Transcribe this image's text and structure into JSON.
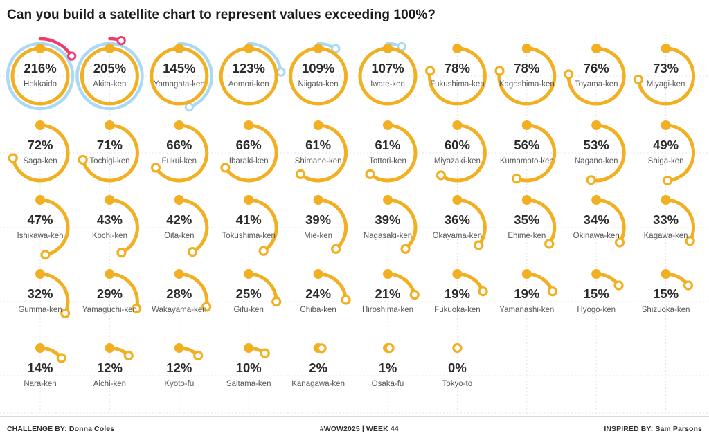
{
  "title": "Can you build a satellite chart to represent values exceeding 100%?",
  "footer": {
    "left": "CHALLENGE BY: Donna Coles",
    "center": "#WOW2025 | WEEK 44",
    "right": "INSPIRED BY: Sam Parsons"
  },
  "colors": {
    "ring_0_100": "#F1AF21",
    "ring_100_200": "#A9D9F3",
    "ring_200_300": "#EF3C6F",
    "value_text": "#2b2b2b",
    "label_text": "#575757",
    "gridline": "#e4e4e4",
    "title_text": "#1c1c1c",
    "footer_text": "#303030"
  },
  "chart_data": {
    "type": "satellite-gauge",
    "title": "Can you build a satellite chart to represent values exceeding 100%?",
    "unit": "%",
    "grid": {
      "columns": 10,
      "rows": 5
    },
    "encoding": "Each ring = 100%. Inner orange ring 0-100%, middle blue ring 100-200%, outer pink ring 200-300%. Arc starts at 12 o'clock with a filled dot and sweeps clockwise, ending in an open circle marker.",
    "legend": [
      {
        "band": "0-100%",
        "color": "#F1AF21"
      },
      {
        "band": "100-200%",
        "color": "#A9D9F3"
      },
      {
        "band": "200-300%",
        "color": "#EF3C6F"
      }
    ],
    "points": [
      {
        "prefecture": "Hokkaido",
        "value": 216,
        "label": "216%"
      },
      {
        "prefecture": "Akita-ken",
        "value": 205,
        "label": "205%"
      },
      {
        "prefecture": "Yamagata-ken",
        "value": 145,
        "label": "145%"
      },
      {
        "prefecture": "Aomori-ken",
        "value": 123,
        "label": "123%"
      },
      {
        "prefecture": "Niigata-ken",
        "value": 109,
        "label": "109%"
      },
      {
        "prefecture": "Iwate-ken",
        "value": 107,
        "label": "107%"
      },
      {
        "prefecture": "Fukushima-ken",
        "value": 78,
        "label": "78%"
      },
      {
        "prefecture": "Kagoshima-ken",
        "value": 78,
        "label": "78%"
      },
      {
        "prefecture": "Toyama-ken",
        "value": 76,
        "label": "76%"
      },
      {
        "prefecture": "Miyagi-ken",
        "value": 73,
        "label": "73%"
      },
      {
        "prefecture": "Saga-ken",
        "value": 72,
        "label": "72%"
      },
      {
        "prefecture": "Tochigi-ken",
        "value": 71,
        "label": "71%"
      },
      {
        "prefecture": "Fukui-ken",
        "value": 66,
        "label": "66%"
      },
      {
        "prefecture": "Ibaraki-ken",
        "value": 66,
        "label": "66%"
      },
      {
        "prefecture": "Shimane-ken",
        "value": 61,
        "label": "61%"
      },
      {
        "prefecture": "Tottori-ken",
        "value": 61,
        "label": "61%"
      },
      {
        "prefecture": "Miyazaki-ken",
        "value": 60,
        "label": "60%"
      },
      {
        "prefecture": "Kumamoto-ken",
        "value": 56,
        "label": "56%"
      },
      {
        "prefecture": "Nagano-ken",
        "value": 53,
        "label": "53%"
      },
      {
        "prefecture": "Shiga-ken",
        "value": 49,
        "label": "49%"
      },
      {
        "prefecture": "Ishikawa-ken",
        "value": 47,
        "label": "47%"
      },
      {
        "prefecture": "Kochi-ken",
        "value": 43,
        "label": "43%"
      },
      {
        "prefecture": "Oita-ken",
        "value": 42,
        "label": "42%"
      },
      {
        "prefecture": "Tokushima-ken",
        "value": 41,
        "label": "41%"
      },
      {
        "prefecture": "Mie-ken",
        "value": 39,
        "label": "39%"
      },
      {
        "prefecture": "Nagasaki-ken",
        "value": 39,
        "label": "39%"
      },
      {
        "prefecture": "Okayama-ken",
        "value": 36,
        "label": "36%"
      },
      {
        "prefecture": "Ehime-ken",
        "value": 35,
        "label": "35%"
      },
      {
        "prefecture": "Okinawa-ken",
        "value": 34,
        "label": "34%"
      },
      {
        "prefecture": "Kagawa-ken",
        "value": 33,
        "label": "33%"
      },
      {
        "prefecture": "Gumma-ken",
        "value": 32,
        "label": "32%"
      },
      {
        "prefecture": "Yamaguchi-ken",
        "value": 29,
        "label": "29%"
      },
      {
        "prefecture": "Wakayama-ken",
        "value": 28,
        "label": "28%"
      },
      {
        "prefecture": "Gifu-ken",
        "value": 25,
        "label": "25%"
      },
      {
        "prefecture": "Chiba-ken",
        "value": 24,
        "label": "24%"
      },
      {
        "prefecture": "Hiroshima-ken",
        "value": 21,
        "label": "21%"
      },
      {
        "prefecture": "Fukuoka-ken",
        "value": 19,
        "label": "19%"
      },
      {
        "prefecture": "Yamanashi-ken",
        "value": 19,
        "label": "19%"
      },
      {
        "prefecture": "Hyogo-ken",
        "value": 15,
        "label": "15%"
      },
      {
        "prefecture": "Shizuoka-ken",
        "value": 15,
        "label": "15%"
      },
      {
        "prefecture": "Nara-ken",
        "value": 14,
        "label": "14%"
      },
      {
        "prefecture": "Aichi-ken",
        "value": 12,
        "label": "12%"
      },
      {
        "prefecture": "Kyoto-fu",
        "value": 12,
        "label": "12%"
      },
      {
        "prefecture": "Saitama-ken",
        "value": 10,
        "label": "10%"
      },
      {
        "prefecture": "Kanagawa-ken",
        "value": 2,
        "label": "2%"
      },
      {
        "prefecture": "Osaka-fu",
        "value": 1,
        "label": "1%"
      },
      {
        "prefecture": "Tokyo-to",
        "value": 0,
        "label": "0%"
      }
    ]
  }
}
